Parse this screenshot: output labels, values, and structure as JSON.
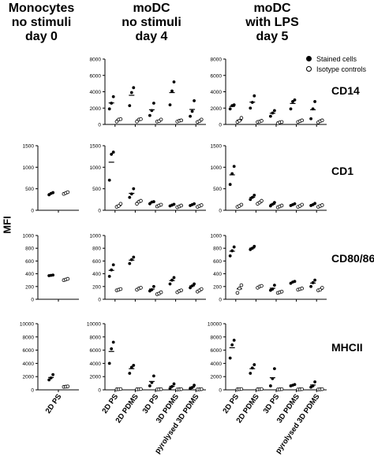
{
  "figure": {
    "columns": [
      {
        "line1": "Monocytes",
        "line2": "no stimuli",
        "line3": "day 0"
      },
      {
        "line1": "moDC",
        "line2": "no stimuli",
        "line3": "day 4"
      },
      {
        "line1": "moDC",
        "line2": "with LPS",
        "line3": "day 5"
      }
    ],
    "rows": [
      "CD14",
      "CD1",
      "CD80/86",
      "MHCII"
    ],
    "ylabel": "MFI",
    "legend": {
      "stained": "Stained cells",
      "isotype": "Isotype controls"
    },
    "colors": {
      "ink": "#000000",
      "background": "#ffffff"
    }
  },
  "chart_data": [
    {
      "type": "scatter",
      "marker": "CD14",
      "condition": "moDC no stimuli day 4",
      "ylim": [
        0,
        8000
      ],
      "yticks": [
        0,
        2000,
        4000,
        6000,
        8000
      ],
      "categories": [
        "2D PS",
        "2D PDMS",
        "3D PS",
        "3D PDMS",
        "pyrolysed 3D PDMS"
      ],
      "series": [
        {
          "name": "Stained cells",
          "values": [
            [
              1900,
              2600,
              3400
            ],
            [
              2300,
              3900,
              4500
            ],
            [
              1100,
              1700,
              2600
            ],
            [
              2400,
              4100,
              5200
            ],
            [
              1000,
              1600,
              2900
            ]
          ]
        },
        {
          "name": "Isotype controls",
          "values": [
            [
              350,
              600,
              650
            ],
            [
              350,
              600,
              650
            ],
            [
              350,
              400,
              600
            ],
            [
              350,
              450,
              500
            ],
            [
              300,
              400,
              600
            ]
          ]
        }
      ]
    },
    {
      "type": "scatter",
      "marker": "CD14",
      "condition": "moDC with LPS day 5",
      "ylim": [
        0,
        8000
      ],
      "yticks": [
        0,
        2000,
        4000,
        6000,
        8000
      ],
      "categories": [
        "2D PS",
        "2D PDMS",
        "3D PS",
        "3D PDMS",
        "pyrolysed 3D PDMS"
      ],
      "series": [
        {
          "name": "Stained cells",
          "values": [
            [
              1900,
              2300,
              2400
            ],
            [
              2000,
              2700,
              3500
            ],
            [
              1000,
              1400,
              1700
            ],
            [
              1900,
              2800,
              3000
            ],
            [
              700,
              1900,
              2800
            ]
          ]
        },
        {
          "name": "Isotype controls",
          "values": [
            [
              300,
              450,
              800
            ],
            [
              300,
              350,
              450
            ],
            [
              150,
              250,
              300
            ],
            [
              300,
              400,
              500
            ],
            [
              250,
              400,
              500
            ]
          ]
        }
      ]
    },
    {
      "type": "scatter",
      "marker": "CD1",
      "condition": "Monocytes no stimuli day 0",
      "ylim": [
        0,
        1500
      ],
      "yticks": [
        0,
        500,
        1000,
        1500
      ],
      "categories": [
        "2D PS"
      ],
      "series": [
        {
          "name": "Stained cells",
          "values": [
            [
              360,
              390,
              410
            ]
          ]
        },
        {
          "name": "Isotype controls",
          "values": [
            [
              380,
              400,
              420
            ]
          ]
        }
      ]
    },
    {
      "type": "scatter",
      "marker": "CD1",
      "condition": "moDC no stimuli day 4",
      "ylim": [
        0,
        1500
      ],
      "yticks": [
        0,
        500,
        1000,
        1500
      ],
      "categories": [
        "2D PS",
        "2D PDMS",
        "3D PS",
        "3D PDMS",
        "pyrolysed 3D PDMS"
      ],
      "series": [
        {
          "name": "Stained cells",
          "values": [
            [
              700,
              1300,
              1350
            ],
            [
              300,
              380,
              500
            ],
            [
              150,
              190,
              200
            ],
            [
              100,
              120,
              140
            ],
            [
              110,
              130,
              150
            ]
          ]
        },
        {
          "name": "Isotype controls",
          "values": [
            [
              80,
              100,
              150
            ],
            [
              150,
              200,
              220
            ],
            [
              90,
              110,
              130
            ],
            [
              70,
              90,
              110
            ],
            [
              80,
              100,
              120
            ]
          ]
        }
      ]
    },
    {
      "type": "scatter",
      "marker": "CD1",
      "condition": "moDC with LPS day 5",
      "ylim": [
        0,
        1500
      ],
      "yticks": [
        0,
        500,
        1000,
        1500
      ],
      "categories": [
        "2D PS",
        "2D PDMS",
        "3D PS",
        "3D PDMS",
        "pyrolysed 3D PDMS"
      ],
      "series": [
        {
          "name": "Stained cells",
          "values": [
            [
              600,
              850,
              1020
            ],
            [
              250,
              300,
              350
            ],
            [
              100,
              140,
              180
            ],
            [
              110,
              130,
              150
            ],
            [
              110,
              130,
              160
            ]
          ]
        },
        {
          "name": "Isotype controls",
          "values": [
            [
              80,
              100,
              130
            ],
            [
              150,
              180,
              220
            ],
            [
              70,
              90,
              110
            ],
            [
              80,
              100,
              130
            ],
            [
              80,
              100,
              120
            ]
          ]
        }
      ]
    },
    {
      "type": "scatter",
      "marker": "CD80/86",
      "condition": "Monocytes no stimuli day 0",
      "ylim": [
        0,
        1000
      ],
      "yticks": [
        0,
        200,
        400,
        600,
        800,
        1000
      ],
      "categories": [
        "2D PS"
      ],
      "series": [
        {
          "name": "Stained cells",
          "values": [
            [
              370,
              375,
              380
            ]
          ]
        },
        {
          "name": "Isotype controls",
          "values": [
            [
              300,
              310,
              320
            ]
          ]
        }
      ]
    },
    {
      "type": "scatter",
      "marker": "CD80/86",
      "condition": "moDC no stimuli day 4",
      "ylim": [
        0,
        1000
      ],
      "yticks": [
        0,
        200,
        400,
        600,
        800,
        1000
      ],
      "categories": [
        "2D PS",
        "2D PDMS",
        "3D PS",
        "3D PDMS",
        "pyrolysed 3D PDMS"
      ],
      "series": [
        {
          "name": "Stained cells",
          "values": [
            [
              360,
              460,
              540
            ],
            [
              560,
              620,
              660
            ],
            [
              130,
              150,
              200
            ],
            [
              240,
              300,
              340
            ],
            [
              180,
              210,
              240
            ]
          ]
        },
        {
          "name": "Isotype controls",
          "values": [
            [
              140,
              150,
              160
            ],
            [
              150,
              170,
              180
            ],
            [
              80,
              90,
              110
            ],
            [
              110,
              130,
              140
            ],
            [
              120,
              140,
              160
            ]
          ]
        }
      ]
    },
    {
      "type": "scatter",
      "marker": "CD80/86",
      "condition": "moDC with LPS day 5",
      "ylim": [
        0,
        1000
      ],
      "yticks": [
        0,
        200,
        400,
        600,
        800,
        1000
      ],
      "categories": [
        "2D PS",
        "2D PDMS",
        "3D PS",
        "3D PDMS",
        "pyrolysed 3D PDMS"
      ],
      "series": [
        {
          "name": "Stained cells",
          "values": [
            [
              680,
              760,
              820
            ],
            [
              780,
              800,
              830
            ],
            [
              140,
              160,
              220
            ],
            [
              250,
              270,
              280
            ],
            [
              200,
              260,
              300
            ]
          ]
        },
        {
          "name": "Isotype controls",
          "values": [
            [
              100,
              170,
              220
            ],
            [
              180,
              200,
              210
            ],
            [
              100,
              110,
              120
            ],
            [
              150,
              160,
              170
            ],
            [
              140,
              150,
              180
            ]
          ]
        }
      ]
    },
    {
      "type": "scatter",
      "marker": "MHCII",
      "condition": "Monocytes no stimuli day 0",
      "ylim": [
        0,
        10000
      ],
      "yticks": [
        0,
        2000,
        4000,
        6000,
        8000,
        10000
      ],
      "categories": [
        "2D PS"
      ],
      "series": [
        {
          "name": "Stained cells",
          "values": [
            [
              1500,
              1800,
              2300
            ]
          ]
        },
        {
          "name": "Isotype controls",
          "values": [
            [
              450,
              480,
              520
            ]
          ]
        }
      ]
    },
    {
      "type": "scatter",
      "marker": "MHCII",
      "condition": "moDC no stimuli day 4",
      "ylim": [
        0,
        10000
      ],
      "yticks": [
        0,
        2000,
        4000,
        6000,
        8000,
        10000
      ],
      "categories": [
        "2D PS",
        "2D PDMS",
        "3D PS",
        "3D PDMS",
        "pyrolysed 3D PDMS"
      ],
      "series": [
        {
          "name": "Stained cells",
          "values": [
            [
              4000,
              6200,
              7200
            ],
            [
              2500,
              3400,
              3700
            ],
            [
              600,
              1100,
              2100
            ],
            [
              200,
              500,
              900
            ],
            [
              200,
              350,
              700
            ]
          ]
        },
        {
          "name": "Isotype controls",
          "values": [
            [
              80,
              100,
              120
            ],
            [
              80,
              100,
              120
            ],
            [
              60,
              80,
              100
            ],
            [
              60,
              80,
              100
            ],
            [
              60,
              80,
              100
            ]
          ]
        }
      ]
    },
    {
      "type": "scatter",
      "marker": "MHCII",
      "condition": "moDC with LPS day 5",
      "ylim": [
        0,
        10000
      ],
      "yticks": [
        0,
        2000,
        4000,
        6000,
        8000,
        10000
      ],
      "categories": [
        "2D PS",
        "2D PDMS",
        "3D PS",
        "3D PDMS",
        "pyrolysed 3D PDMS"
      ],
      "series": [
        {
          "name": "Stained cells",
          "values": [
            [
              4800,
              6800,
              7500
            ],
            [
              2500,
              3300,
              3800
            ],
            [
              600,
              1700,
              3200
            ],
            [
              600,
              700,
              800
            ],
            [
              400,
              600,
              1200
            ]
          ]
        },
        {
          "name": "Isotype controls",
          "values": [
            [
              80,
              100,
              120
            ],
            [
              80,
              100,
              120
            ],
            [
              60,
              80,
              100
            ],
            [
              60,
              80,
              100
            ],
            [
              60,
              80,
              100
            ]
          ]
        }
      ]
    }
  ]
}
